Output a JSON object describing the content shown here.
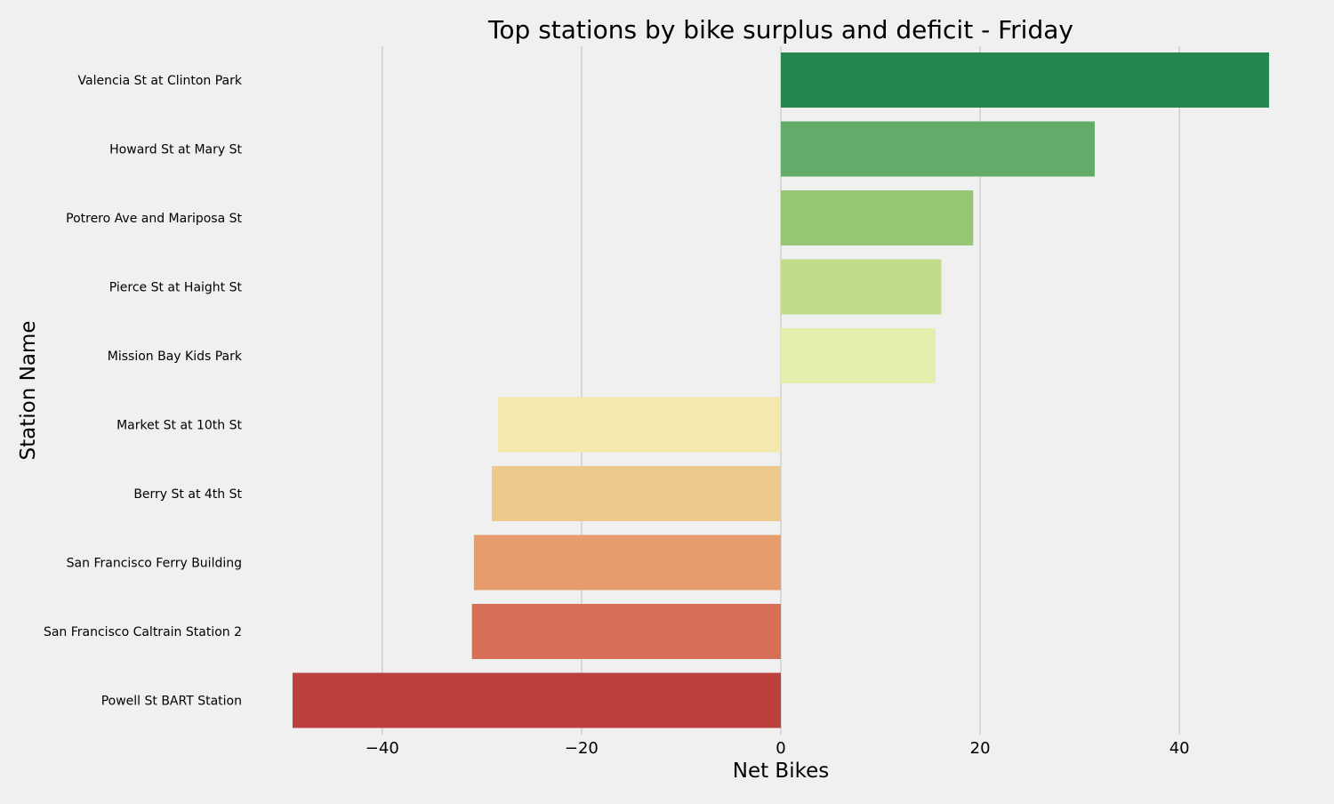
{
  "chart_data": {
    "type": "bar",
    "orientation": "horizontal",
    "title": "Top stations by bike surplus and deficit - Friday",
    "xlabel": "Net Bikes",
    "ylabel": "Station Name",
    "xlim": [
      -49.8,
      49.8
    ],
    "xticks": [
      -40,
      -20,
      0,
      20,
      40
    ],
    "xtick_labels": [
      "−40",
      "−20",
      "0",
      "20",
      "40"
    ],
    "grid": "vertical",
    "background": "#f0f0f0",
    "categories": [
      "Valencia St at Clinton Park",
      "Howard St at Mary St",
      "Potrero Ave and Mariposa St",
      "Pierce St at Haight St",
      "Mission Bay Kids Park",
      "Market St at 10th St",
      "Berry St at 4th St",
      "San Francisco Ferry Building",
      "San Francisco Caltrain Station 2",
      "Powell St BART Station"
    ],
    "values": [
      49,
      31.5,
      19.3,
      16.1,
      15.5,
      -28.4,
      -29,
      -30.8,
      -31,
      -49
    ],
    "colors": [
      "#26864f",
      "#63ab68",
      "#96c574",
      "#c3dc8a",
      "#e6eeae",
      "#f4e8ae",
      "#edc98c",
      "#e69c6b",
      "#d96e56",
      "#bc413e"
    ]
  }
}
